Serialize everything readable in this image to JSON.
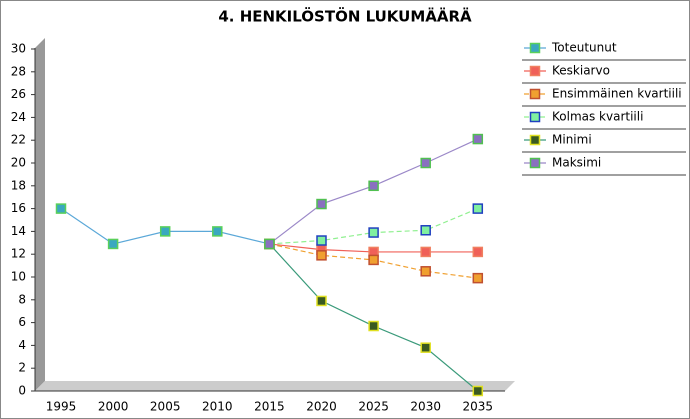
{
  "chart_data": {
    "type": "line",
    "title": "4. HENKILÖSTÖN LUKUMÄÄRÄ",
    "categories": [
      "1995",
      "2000",
      "2005",
      "2010",
      "2015",
      "2020",
      "2025",
      "2030",
      "2035"
    ],
    "ylim": [
      0,
      30
    ],
    "yticks": [
      0,
      2,
      4,
      6,
      8,
      10,
      12,
      14,
      16,
      18,
      20,
      22,
      24,
      26,
      28,
      30
    ],
    "legend": "right",
    "series": [
      {
        "name": "Toteutunut",
        "color": "#5ba8d8",
        "dashed": false,
        "marker_fill": "#3aa8c0",
        "marker_stroke": "#5ad05a",
        "values": [
          16,
          12.9,
          14,
          14,
          12.9,
          null,
          null,
          null,
          null
        ]
      },
      {
        "name": "Keskiarvo",
        "color": "#f06058",
        "dashed": false,
        "marker_fill": "#f06058",
        "marker_stroke": "#f08060",
        "values": [
          null,
          null,
          null,
          null,
          12.9,
          12.4,
          12.2,
          12.2,
          12.2
        ]
      },
      {
        "name": "Ensimmäinen kvartiili",
        "color": "#f0a030",
        "dashed": true,
        "marker_fill": "#f0a030",
        "marker_stroke": "#c05030",
        "values": [
          null,
          null,
          null,
          null,
          12.9,
          11.9,
          11.5,
          10.5,
          9.9
        ]
      },
      {
        "name": "Kolmas kvartiili",
        "color": "#90f090",
        "dashed": true,
        "marker_fill": "#80f0a0",
        "marker_stroke": "#2040c0",
        "values": [
          null,
          null,
          null,
          null,
          12.9,
          13.2,
          13.9,
          14.1,
          16
        ]
      },
      {
        "name": "Minimi",
        "color": "#3a9a7a",
        "dashed": false,
        "marker_fill": "#3a5a20",
        "marker_stroke": "#e0e020",
        "values": [
          null,
          null,
          null,
          null,
          12.9,
          7.9,
          5.7,
          3.8,
          0
        ]
      },
      {
        "name": "Maksimi",
        "color": "#9b88c8",
        "dashed": false,
        "marker_fill": "#8a70c0",
        "marker_stroke": "#50c050",
        "values": [
          null,
          null,
          null,
          null,
          12.9,
          16.4,
          18,
          20,
          22.1
        ]
      }
    ]
  }
}
